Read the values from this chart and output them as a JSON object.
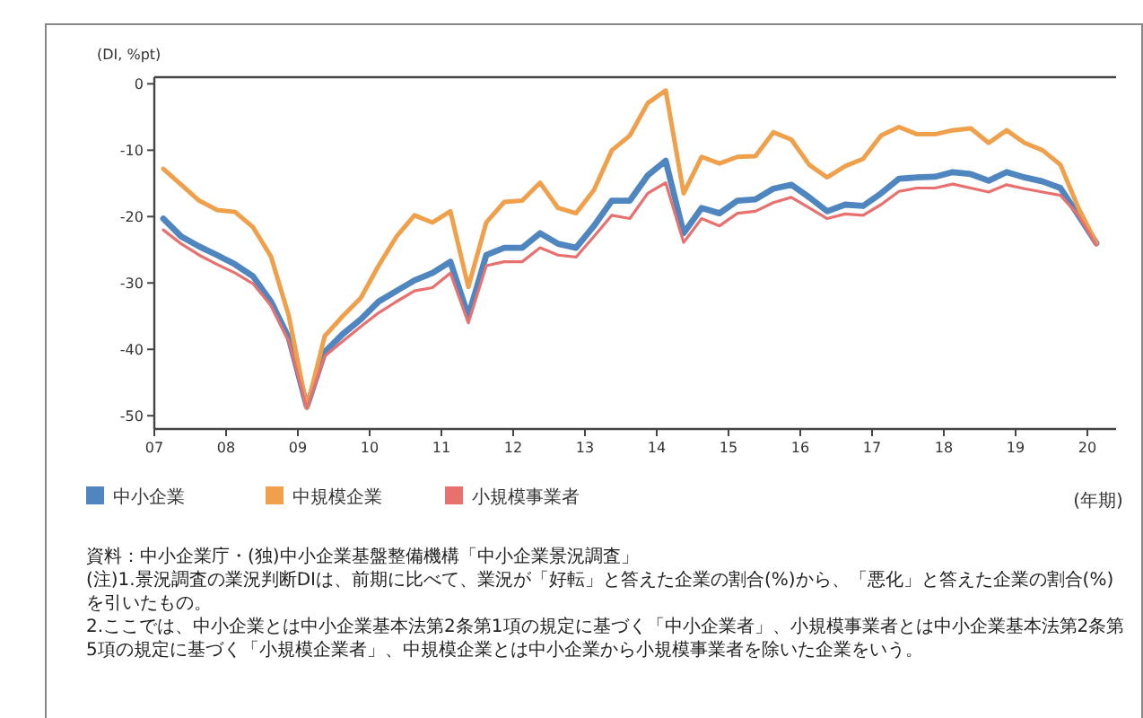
{
  "chart_data": {
    "type": "line",
    "ylabel": "(DI, %pt)",
    "xlabel": "(年期)",
    "legend": "bottom left",
    "x": [
      2007.125,
      2007.375,
      2007.625,
      2007.875,
      2008.125,
      2008.375,
      2008.625,
      2008.875,
      2009.125,
      2009.375,
      2009.625,
      2009.875,
      2010.125,
      2010.375,
      2010.625,
      2010.875,
      2011.125,
      2011.375,
      2011.625,
      2011.875,
      2012.125,
      2012.375,
      2012.625,
      2012.875,
      2013.125,
      2013.375,
      2013.625,
      2013.875,
      2014.125,
      2014.375,
      2014.625,
      2014.875,
      2015.125,
      2015.375,
      2015.625,
      2015.875,
      2016.125,
      2016.375,
      2016.625,
      2016.875,
      2017.125,
      2017.375,
      2017.625,
      2017.875,
      2018.125,
      2018.375,
      2018.625,
      2018.875,
      2019.125,
      2019.375,
      2019.625,
      2019.875,
      2020.125
    ],
    "xlim": [
      2007,
      2020.4
    ],
    "ylim": [
      -52,
      1
    ],
    "xticks": [
      {
        "value": 2007,
        "label": "07"
      },
      {
        "value": 2008,
        "label": "08"
      },
      {
        "value": 2009,
        "label": "09"
      },
      {
        "value": 2010,
        "label": "10"
      },
      {
        "value": 2011,
        "label": "11"
      },
      {
        "value": 2012,
        "label": "12"
      },
      {
        "value": 2013,
        "label": "13"
      },
      {
        "value": 2014,
        "label": "14"
      },
      {
        "value": 2015,
        "label": "15"
      },
      {
        "value": 2016,
        "label": "16"
      },
      {
        "value": 2017,
        "label": "17"
      },
      {
        "value": 2018,
        "label": "18"
      },
      {
        "value": 2019,
        "label": "19"
      },
      {
        "value": 2020,
        "label": "20"
      }
    ],
    "yticks": [
      0,
      -10,
      -20,
      -30,
      -40,
      -50
    ],
    "series": [
      {
        "name": "中小企業",
        "color": "#4f86c0",
        "values": [
          -20.3,
          -23,
          -24.5,
          -25.8,
          -27.2,
          -29,
          -32.8,
          -38.3,
          -48.6,
          -40.4,
          -37.7,
          -35.5,
          -32.8,
          -31.2,
          -29.6,
          -28.5,
          -26.8,
          -35,
          -25.8,
          -24.7,
          -24.7,
          -22.5,
          -24.1,
          -24.7,
          -21.4,
          -17.6,
          -17.6,
          -13.8,
          -11.6,
          -22.5,
          -18.7,
          -19.5,
          -17.6,
          -17.4,
          -15.8,
          -15.2,
          -17.1,
          -19.2,
          -18.2,
          -18.4,
          -16.5,
          -14.3,
          -14.1,
          -14,
          -13.3,
          -13.6,
          -14.6,
          -13.3,
          -14.1,
          -14.7,
          -15.7,
          -19.8,
          -24
        ]
      },
      {
        "name": "中規模企業",
        "color": "#f0a04b",
        "values": [
          -12.8,
          -15.2,
          -17.6,
          -19,
          -19.3,
          -21.6,
          -26,
          -35,
          -48.8,
          -38,
          -35,
          -32.3,
          -27.4,
          -23,
          -19.8,
          -20.9,
          -19.2,
          -30.6,
          -20.9,
          -17.8,
          -17.6,
          -14.9,
          -18.7,
          -19.5,
          -16,
          -10,
          -7.8,
          -2.9,
          -1,
          -16.5,
          -11,
          -12,
          -11,
          -10.9,
          -7.3,
          -8.4,
          -12.2,
          -14.1,
          -12.4,
          -11.3,
          -7.8,
          -6.5,
          -7.6,
          -7.6,
          -7,
          -6.7,
          -8.9,
          -7,
          -8.9,
          -10,
          -12.2,
          -18.7,
          -24
        ]
      },
      {
        "name": "小規模事業者",
        "color": "#e8706f",
        "values": [
          -22,
          -24.1,
          -25.8,
          -27.2,
          -28.5,
          -30.1,
          -33.4,
          -38.8,
          -48.9,
          -41,
          -38.8,
          -36.6,
          -34.5,
          -32.8,
          -31.2,
          -30.7,
          -28.5,
          -36,
          -27.4,
          -26.8,
          -26.8,
          -24.7,
          -25.8,
          -26.1,
          -23,
          -19.8,
          -20.3,
          -16.5,
          -14.9,
          -23.9,
          -20.3,
          -21.4,
          -19.5,
          -19.2,
          -17.9,
          -17.1,
          -18.7,
          -20.3,
          -19.6,
          -19.8,
          -18.2,
          -16.2,
          -15.7,
          -15.7,
          -15.1,
          -15.7,
          -16.3,
          -15.2,
          -15.8,
          -16.3,
          -16.8,
          -19.8,
          -24.3
        ]
      }
    ],
    "annotations": [
      "資料：中小企業庁・(独)中小企業基盤整備機構「中小企業景況調査」",
      "(注)1.景況調査の業況判断DIは、前期に比べて、業況が「好転」と答えた企業の割合(%)から、「悪化」と答えた企業の割合(%)を引いたもの。",
      "2.ここでは、中小企業とは中小企業基本法第2条第1項の規定に基づく「中小企業者」、小規模事業者とは中小企業基本法第2条第5項の規定に基づく「小規模企業者」、中規模企業とは中小企業から小規模事業者を除いた企業をいう。"
    ]
  }
}
